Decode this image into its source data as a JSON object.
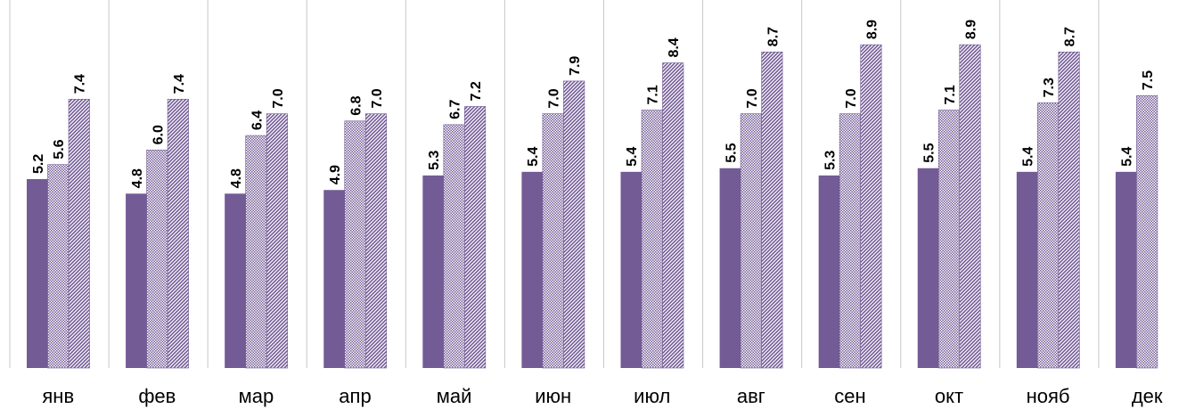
{
  "chart_data": {
    "type": "bar",
    "categories": [
      "янв",
      "фев",
      "мар",
      "апр",
      "май",
      "июн",
      "июл",
      "авг",
      "сен",
      "окт",
      "нояб",
      "дек"
    ],
    "series": [
      {
        "values": [
          5.2,
          4.8,
          4.8,
          4.9,
          5.3,
          5.4,
          5.4,
          5.5,
          5.3,
          5.5,
          5.4,
          5.4
        ],
        "color": "#735b96",
        "fill": "solid"
      },
      {
        "values": [
          5.6,
          6.0,
          6.4,
          6.8,
          6.7,
          7.0,
          7.1,
          7.0,
          7.0,
          7.1,
          7.3,
          7.5
        ],
        "color": "#735b96",
        "fill": "fine-dots"
      },
      {
        "values": [
          7.4,
          7.4,
          7.0,
          7.0,
          7.2,
          7.9,
          8.4,
          8.7,
          8.9,
          8.9,
          8.7,
          null
        ],
        "color": "#735b96",
        "fill": "diagonal-hatch"
      }
    ],
    "data_labels": {
      "0": [
        "5.2",
        "4.8",
        "4.8",
        "4.9",
        "5.3",
        "5.4",
        "5.4",
        "5.5",
        "5.3",
        "5.5",
        "5.4",
        "5.4"
      ],
      "1": [
        "5.6",
        "6.0",
        "6.4",
        "6.8",
        "6.7",
        "7.0",
        "7.1",
        "7.0",
        "7.0",
        "7.1",
        "7.3",
        "7.5"
      ],
      "2": [
        "7.4",
        "7.4",
        "7.0",
        "7.0",
        "7.2",
        "7.9",
        "8.4",
        "8.7",
        "8.9",
        "8.9",
        "8.7",
        ""
      ]
    },
    "ylim": [
      0,
      9.1
    ],
    "grid": false,
    "category_separators": true
  }
}
